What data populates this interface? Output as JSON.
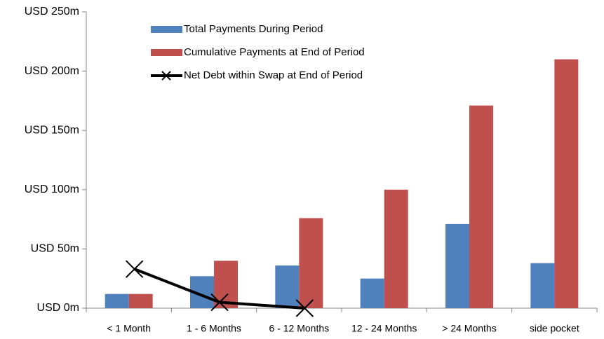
{
  "chart_data": {
    "type": "bar",
    "categories": [
      "< 1 Month",
      "1 - 6 Months",
      "6 - 12 Months",
      "12 - 24 Months",
      "> 24 Months",
      "side pocket"
    ],
    "series": [
      {
        "name": "Total Payments During Period",
        "type": "bar",
        "color": "#4f81bd",
        "values": [
          12,
          27,
          36,
          25,
          71,
          38
        ]
      },
      {
        "name": "Cumulative Payments at End of Period",
        "type": "bar",
        "color": "#c0504d",
        "values": [
          12,
          40,
          76,
          100,
          171,
          210
        ]
      },
      {
        "name": "Net Debt within Swap at End of Period",
        "type": "line",
        "color": "#000000",
        "values": [
          33,
          5,
          0,
          null,
          null,
          null
        ]
      }
    ],
    "ylim": [
      0,
      250
    ],
    "yticks": [
      {
        "value": 0,
        "label": "USD 0m"
      },
      {
        "value": 50,
        "label": "USD 50m"
      },
      {
        "value": 100,
        "label": "USD 100m"
      },
      {
        "value": 150,
        "label": "USD 150m"
      },
      {
        "value": 200,
        "label": "USD 200m"
      },
      {
        "value": 250,
        "label": "USD 250m"
      }
    ],
    "grid": false,
    "legend": "upper center"
  }
}
